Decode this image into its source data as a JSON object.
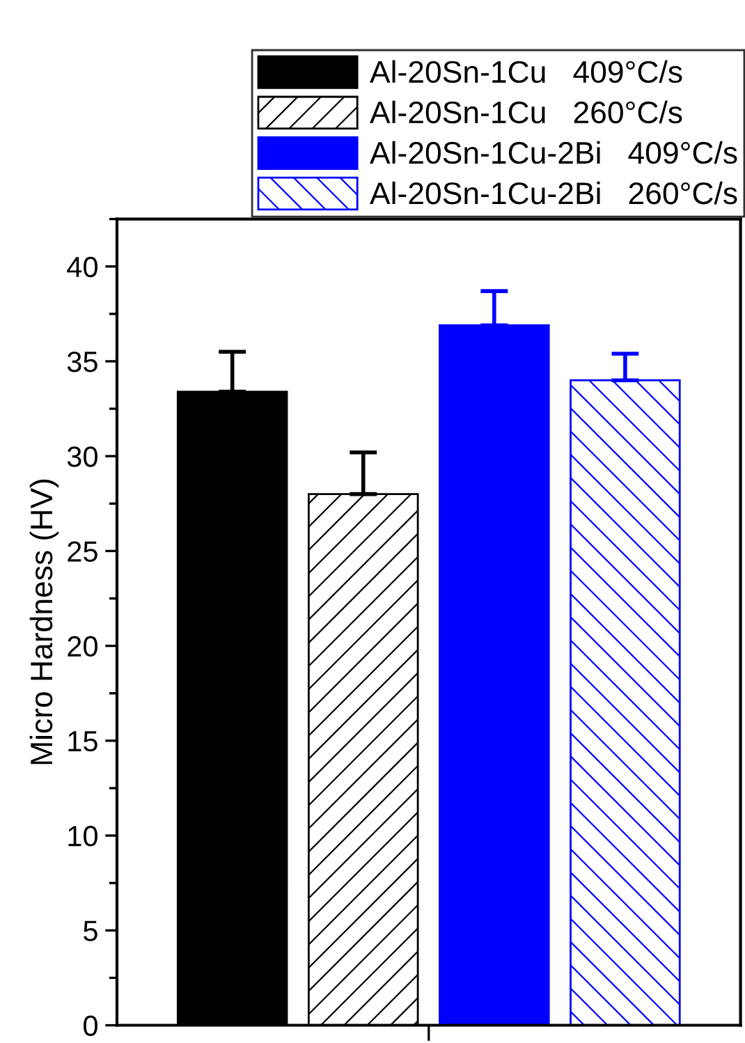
{
  "chart_data": {
    "type": "bar",
    "ylabel": "Micro Hardness (HV)",
    "categories": [
      null
    ],
    "series": [
      {
        "name": "Al-20Sn-1Cu   409°C/s",
        "color": "#000000",
        "values": [
          33.4
        ],
        "errors": [
          2.1
        ]
      },
      {
        "name": "Al-20Sn-1Cu   260°C/s",
        "color": "#000000",
        "values": [
          28.0
        ],
        "errors": [
          2.2
        ]
      },
      {
        "name": "Al-20Sn-1Cu-2Bi   409°C/s",
        "color": "#0000ff",
        "values": [
          36.9
        ],
        "errors": [
          1.8
        ]
      },
      {
        "name": "Al-20Sn-1Cu-2Bi   260°C/s",
        "color": "#0000ff",
        "values": [
          34.0
        ],
        "errors": [
          1.4
        ]
      }
    ],
    "ylim": [
      0,
      42.5
    ],
    "yticks": [
      0,
      5,
      10,
      15,
      20,
      25,
      30,
      35,
      40
    ],
    "grid": false,
    "legend": "top"
  }
}
